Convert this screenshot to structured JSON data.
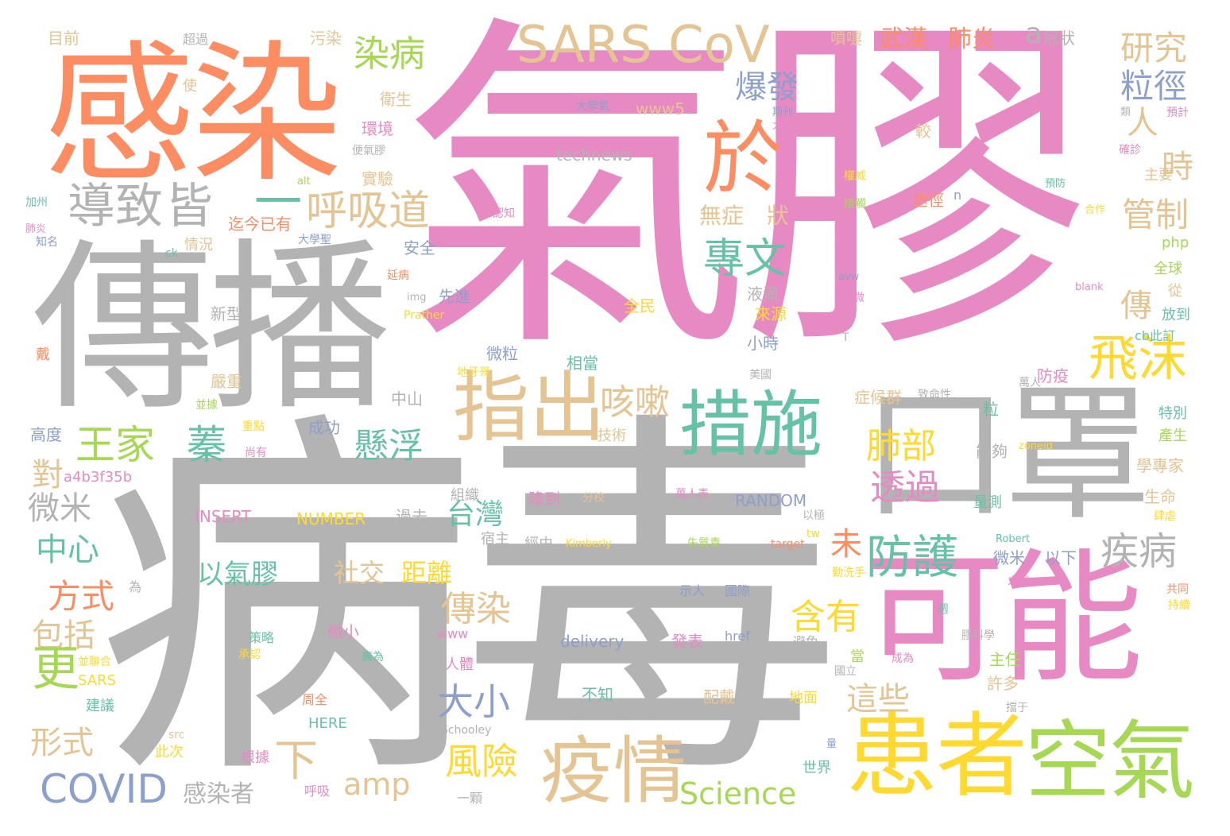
{
  "palette": {
    "pink": "#e78ac3",
    "gray": "#b3b3b3",
    "orange": "#fc8d62",
    "tan": "#e5c494",
    "green": "#66c2a5",
    "lime": "#a6d854",
    "yellow": "#ffd92f",
    "blue": "#8da0cb"
  },
  "words": [
    {
      "text": "氣膠",
      "color": "#e78ac3"
    },
    {
      "text": "病毒",
      "color": "#b3b3b3"
    },
    {
      "text": "傳播",
      "color": "#b3b3b3"
    },
    {
      "text": "感染",
      "color": "#fc8d62"
    },
    {
      "text": "口罩",
      "color": "#b3b3b3"
    },
    {
      "text": "可能",
      "color": "#e78ac3"
    },
    {
      "text": "患者",
      "color": "#ffd92f"
    },
    {
      "text": "空氣",
      "color": "#a6d854"
    },
    {
      "text": "SARS CoV",
      "color": "#e5c494"
    },
    {
      "text": "指出",
      "color": "#e5c494"
    },
    {
      "text": "措施",
      "color": "#66c2a5"
    },
    {
      "text": "疫情",
      "color": "#e5c494"
    },
    {
      "text": "於",
      "color": "#fc8d62"
    },
    {
      "text": "導致",
      "color": "#b3b3b3"
    },
    {
      "text": "皆",
      "color": "#b3b3b3"
    },
    {
      "text": "一",
      "color": "#66c2a5"
    },
    {
      "text": "呼吸道",
      "color": "#e5c494"
    },
    {
      "text": "飛沫",
      "color": "#ffd92f"
    },
    {
      "text": "王家",
      "color": "#a6d854"
    },
    {
      "text": "蓁",
      "color": "#66c2a5"
    },
    {
      "text": "防護",
      "color": "#66c2a5"
    },
    {
      "text": "專文",
      "color": "#66c2a5"
    },
    {
      "text": "爆發",
      "color": "#8da0cb"
    },
    {
      "text": "染病",
      "color": "#a6d854"
    },
    {
      "text": "COVID",
      "color": "#8da0cb"
    },
    {
      "text": "Science",
      "color": "#a6d854"
    },
    {
      "text": "風險",
      "color": "#ffd92f"
    },
    {
      "text": "含有",
      "color": "#ffd92f"
    },
    {
      "text": "肺部",
      "color": "#ffd92f"
    },
    {
      "text": "透過",
      "color": "#e78ac3"
    },
    {
      "text": "懸浮",
      "color": "#66c2a5"
    },
    {
      "text": "咳嗽",
      "color": "#e5c494"
    },
    {
      "text": "大小",
      "color": "#8da0cb"
    },
    {
      "text": "傳染",
      "color": "#e5c494"
    },
    {
      "text": "疾病",
      "color": "#b3b3b3"
    },
    {
      "text": "這些",
      "color": "#e5c494"
    },
    {
      "text": "下",
      "color": "#e5c494"
    },
    {
      "text": "amp",
      "color": "#e5c494"
    },
    {
      "text": "台灣",
      "color": "#66c2a5"
    },
    {
      "text": "中心",
      "color": "#66c2a5"
    },
    {
      "text": "方式",
      "color": "#fc8d62"
    },
    {
      "text": "包括",
      "color": "#e5c494"
    },
    {
      "text": "形式",
      "color": "#e5c494"
    },
    {
      "text": "微米",
      "color": "#b3b3b3"
    },
    {
      "text": "對",
      "color": "#e5c494"
    },
    {
      "text": "更",
      "color": "#a6d854"
    },
    {
      "text": "感染者",
      "color": "#b3b3b3"
    },
    {
      "text": "以氣膠",
      "color": "#66c2a5"
    },
    {
      "text": "社交",
      "color": "#e5c494"
    },
    {
      "text": "距離",
      "color": "#ffd92f"
    },
    {
      "text": "未",
      "color": "#fc8d62"
    },
    {
      "text": "管制",
      "color": "#e5c494"
    },
    {
      "text": "時",
      "color": "#e5c494"
    },
    {
      "text": "研究",
      "color": "#e5c494"
    },
    {
      "text": "粒徑",
      "color": "#8da0cb"
    },
    {
      "text": "人",
      "color": "#e5c494"
    },
    {
      "text": "傳",
      "color": "#e5c494"
    },
    {
      "text": "無症",
      "color": "#e5c494"
    },
    {
      "text": "狀",
      "color": "#e5c494"
    },
    {
      "text": "武漢",
      "color": "#fc8d62"
    },
    {
      "text": "肺炎",
      "color": "#fc8d62"
    },
    {
      "text": "a",
      "color": "#b3b3b3"
    },
    {
      "text": "冠狀",
      "color": "#b3b3b3"
    },
    {
      "text": "目前",
      "color": "#e5c494"
    },
    {
      "text": "超過",
      "color": "#b3b3b3"
    },
    {
      "text": "污染",
      "color": "#e5c494"
    },
    {
      "text": "噴嚏",
      "color": "#e5c494"
    },
    {
      "text": "使",
      "color": "#e5c494"
    },
    {
      "text": "衛生",
      "color": "#e5c494"
    },
    {
      "text": "環境",
      "color": "#e78ac3"
    },
    {
      "text": "便氣膠",
      "color": "#b3b3b3"
    },
    {
      "text": "實驗",
      "color": "#e5c494"
    },
    {
      "text": "technews",
      "color": "#b3b3b3"
    },
    {
      "text": "border",
      "color": "#e78ac3"
    },
    {
      "text": "大學氣",
      "color": "#8da0cb"
    },
    {
      "text": "www5",
      "color": "#e5c494"
    },
    {
      "text": "期刊",
      "color": "#8da0cb"
    },
    {
      "text": "大眾",
      "color": "#e78ac3"
    },
    {
      "text": "WHO",
      "color": "#e78ac3"
    },
    {
      "text": "較",
      "color": "#e5c494"
    },
    {
      "text": "加州",
      "color": "#66c2a5"
    },
    {
      "text": "肺炎",
      "color": "#e78ac3"
    },
    {
      "text": "知名",
      "color": "#8da0cb"
    },
    {
      "text": "ck",
      "color": "#66c2a5"
    },
    {
      "text": "情況",
      "color": "#e5c494"
    },
    {
      "text": "迄今已有",
      "color": "#fc8d62"
    },
    {
      "text": "大學聖",
      "color": "#8da0cb"
    },
    {
      "text": "安全",
      "color": "#8da0cb"
    },
    {
      "text": "alt",
      "color": "#a6d854"
    },
    {
      "text": "認知",
      "color": "#e78ac3"
    },
    {
      "text": "新型",
      "color": "#b3b3b3"
    },
    {
      "text": "延病",
      "color": "#fc8d62"
    },
    {
      "text": "img",
      "color": "#b3b3b3"
    },
    {
      "text": "先進",
      "color": "#8da0cb"
    },
    {
      "text": "Prather",
      "color": "#ffd92f"
    },
    {
      "text": "液滴",
      "color": "#b3b3b3"
    },
    {
      "text": "來源",
      "color": "#ffd92f"
    },
    {
      "text": "小時",
      "color": "#8da0cb"
    },
    {
      "text": "全民",
      "color": "#ffd92f"
    },
    {
      "text": "微粒",
      "color": "#8da0cb"
    },
    {
      "text": "相當",
      "color": "#66c2a5"
    },
    {
      "text": "戴",
      "color": "#fc8d62"
    },
    {
      "text": "地牙哥",
      "color": "#ffd92f"
    },
    {
      "text": "嚴重",
      "color": "#e5c494"
    },
    {
      "text": "中山",
      "color": "#b3b3b3"
    },
    {
      "text": "技術",
      "color": "#e5c494"
    },
    {
      "text": "成功",
      "color": "#8da0cb"
    },
    {
      "text": "高度",
      "color": "#8da0cb"
    },
    {
      "text": "並據",
      "color": "#a6d854"
    },
    {
      "text": "重點",
      "color": "#ffd92f"
    },
    {
      "text": "尚有",
      "color": "#e78ac3"
    },
    {
      "text": "a4b3f35b",
      "color": "#e78ac3"
    },
    {
      "text": "組織",
      "color": "#b3b3b3"
    },
    {
      "text": "INSERT",
      "color": "#e78ac3"
    },
    {
      "text": "NUMBER",
      "color": "#ffd92f"
    },
    {
      "text": "過去",
      "color": "#b3b3b3"
    },
    {
      "text": "降到",
      "color": "#e78ac3"
    },
    {
      "text": "分校",
      "color": "#e5c494"
    },
    {
      "text": "萬人表",
      "color": "#e78ac3"
    },
    {
      "text": "RANDOM",
      "color": "#8da0cb"
    },
    {
      "text": "宿主",
      "color": "#b3b3b3"
    },
    {
      "text": "經由",
      "color": "#b3b3b3"
    },
    {
      "text": "Kimberly",
      "color": "#ffd92f"
    },
    {
      "text": "失質責",
      "color": "#a6d854"
    },
    {
      "text": "target",
      "color": "#fc8d62"
    },
    {
      "text": "以極",
      "color": "#b3b3b3"
    },
    {
      "text": "tw",
      "color": "#ffd92f"
    },
    {
      "text": "為",
      "color": "#b3b3b3"
    },
    {
      "text": "示人",
      "color": "#8da0cb"
    },
    {
      "text": "國際",
      "color": "#8da0cb"
    },
    {
      "text": "www",
      "color": "#e78ac3"
    },
    {
      "text": "微小",
      "color": "#e78ac3"
    },
    {
      "text": "delivery",
      "color": "#8da0cb"
    },
    {
      "text": "發表",
      "color": "#e78ac3"
    },
    {
      "text": "href",
      "color": "#8da0cb"
    },
    {
      "text": "避免",
      "color": "#b3b3b3"
    },
    {
      "text": "策略",
      "color": "#66c2a5"
    },
    {
      "text": "承認",
      "color": "#ffd92f"
    },
    {
      "text": "廣為",
      "color": "#66c2a5"
    },
    {
      "text": "並聯合",
      "color": "#ffd92f"
    },
    {
      "text": "SARS",
      "color": "#ffd92f"
    },
    {
      "text": "人體",
      "color": "#e78ac3"
    },
    {
      "text": "建議",
      "color": "#66c2a5"
    },
    {
      "text": "不知",
      "color": "#66c2a5"
    },
    {
      "text": "周全",
      "color": "#fc8d62"
    },
    {
      "text": "配戴",
      "color": "#e5c494"
    },
    {
      "text": "HERE",
      "color": "#66c2a5"
    },
    {
      "text": "src",
      "color": "#e5c494"
    },
    {
      "text": "此次",
      "color": "#ffd92f"
    },
    {
      "text": "根據",
      "color": "#e78ac3"
    },
    {
      "text": "呼吸",
      "color": "#e78ac3"
    },
    {
      "text": "一顆",
      "color": "#b3b3b3"
    },
    {
      "text": "Schooley",
      "color": "#b3b3b3"
    },
    {
      "text": "地面",
      "color": "#ffd92f"
    },
    {
      "text": "世界",
      "color": "#66c2a5"
    },
    {
      "text": "量",
      "color": "#8da0cb"
    },
    {
      "text": "當",
      "color": "#a6d854"
    },
    {
      "text": "國立",
      "color": "#b3b3b3"
    },
    {
      "text": "成為",
      "color": "#e78ac3"
    },
    {
      "text": "主任",
      "color": "#a6d854"
    },
    {
      "text": "許多",
      "color": "#e5c494"
    },
    {
      "text": "擋于",
      "color": "#b3b3b3"
    },
    {
      "text": "微米",
      "color": "#8da0cb"
    },
    {
      "text": "以下",
      "color": "#8da0cb"
    },
    {
      "text": "Robert",
      "color": "#66c2a5"
    },
    {
      "text": "勤洗手",
      "color": "#ffd92f"
    },
    {
      "text": "之處",
      "color": "#e78ac3"
    },
    {
      "text": "週",
      "color": "#66c2a5"
    },
    {
      "text": "膠科學",
      "color": "#b3b3b3"
    },
    {
      "text": "量測",
      "color": "#66c2a5"
    },
    {
      "text": "zoneid",
      "color": "#ffd92f"
    },
    {
      "text": "能夠",
      "color": "#b3b3b3"
    },
    {
      "text": "學專家",
      "color": "#e5c494"
    },
    {
      "text": "生命",
      "color": "#e5c494"
    },
    {
      "text": "肆虐",
      "color": "#ffd92f"
    },
    {
      "text": "共同",
      "color": "#fc8d62"
    },
    {
      "text": "持續",
      "color": "#ffd92f"
    },
    {
      "text": "特別",
      "color": "#66c2a5"
    },
    {
      "text": "產生",
      "color": "#a6d854"
    },
    {
      "text": "粒",
      "color": "#66c2a5"
    },
    {
      "text": "萬人",
      "color": "#b3b3b3"
    },
    {
      "text": "致命性",
      "color": "#b3b3b3"
    },
    {
      "text": "防疫",
      "color": "#e78ac3"
    },
    {
      "text": "症候群",
      "color": "#e5c494"
    },
    {
      "text": "美國",
      "color": "#b3b3b3"
    },
    {
      "text": "T",
      "color": "#b3b3b3"
    },
    {
      "text": "cb此訂",
      "color": "#66c2a5"
    },
    {
      "text": "放到",
      "color": "#66c2a5"
    },
    {
      "text": "從",
      "color": "#e5c494"
    },
    {
      "text": "全球",
      "color": "#a6d854"
    },
    {
      "text": "blank",
      "color": "#e78ac3"
    },
    {
      "text": "php",
      "color": "#a6d854"
    },
    {
      "text": "經微",
      "color": "#e78ac3"
    },
    {
      "text": "avw",
      "color": "#8da0cb"
    },
    {
      "text": "主要",
      "color": "#e5c494"
    },
    {
      "text": "合作",
      "color": "#ffd92f"
    },
    {
      "text": "預防",
      "color": "#66c2a5"
    },
    {
      "text": "途徑",
      "color": "#fc8d62"
    },
    {
      "text": "n",
      "color": "#8da0cb"
    },
    {
      "text": "接觸",
      "color": "#a6d854"
    },
    {
      "text": "權威",
      "color": "#ffd92f"
    },
    {
      "text": "確診",
      "color": "#e78ac3"
    },
    {
      "text": "類",
      "color": "#b3b3b3"
    },
    {
      "text": "預計",
      "color": "#e78ac3"
    }
  ]
}
